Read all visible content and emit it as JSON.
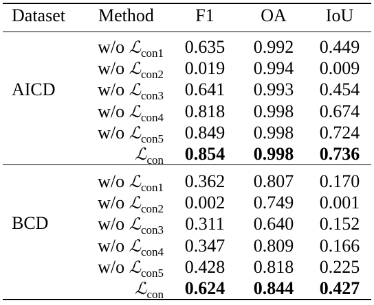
{
  "table": {
    "headers": [
      "Dataset",
      "Method",
      "F1",
      "OA",
      "IoU"
    ],
    "groups": [
      {
        "dataset": "AICD",
        "rows": [
          {
            "prefix": "w/o ",
            "symbol": "ℒ",
            "sub": "con1",
            "f1": "0.635",
            "oa": "0.992",
            "iou": "0.449"
          },
          {
            "prefix": "w/o ",
            "symbol": "ℒ",
            "sub": "con2",
            "f1": "0.019",
            "oa": "0.994",
            "iou": "0.009"
          },
          {
            "prefix": "w/o ",
            "symbol": "ℒ",
            "sub": "con3",
            "f1": "0.641",
            "oa": "0.993",
            "iou": "0.454"
          },
          {
            "prefix": "w/o ",
            "symbol": "ℒ",
            "sub": "con4",
            "f1": "0.818",
            "oa": "0.998",
            "iou": "0.674"
          },
          {
            "prefix": "w/o ",
            "symbol": "ℒ",
            "sub": "con5",
            "f1": "0.849",
            "oa": "0.998",
            "iou": "0.724"
          },
          {
            "prefix": "",
            "symbol": "ℒ",
            "sub": "con",
            "f1": "0.854",
            "oa": "0.998",
            "iou": "0.736",
            "bold": true
          }
        ]
      },
      {
        "dataset": "BCD",
        "rows": [
          {
            "prefix": "w/o ",
            "symbol": "ℒ",
            "sub": "con1",
            "f1": "0.362",
            "oa": "0.807",
            "iou": "0.170"
          },
          {
            "prefix": "w/o ",
            "symbol": "ℒ",
            "sub": "con2",
            "f1": "0.002",
            "oa": "0.749",
            "iou": "0.001"
          },
          {
            "prefix": "w/o ",
            "symbol": "ℒ",
            "sub": "con3",
            "f1": "0.311",
            "oa": "0.640",
            "iou": "0.152"
          },
          {
            "prefix": "w/o ",
            "symbol": "ℒ",
            "sub": "con4",
            "f1": "0.347",
            "oa": "0.809",
            "iou": "0.166"
          },
          {
            "prefix": "w/o ",
            "symbol": "ℒ",
            "sub": "con5",
            "f1": "0.428",
            "oa": "0.818",
            "iou": "0.225"
          },
          {
            "prefix": "",
            "symbol": "ℒ",
            "sub": "con",
            "f1": "0.624",
            "oa": "0.844",
            "iou": "0.427",
            "bold": true
          }
        ]
      }
    ]
  }
}
